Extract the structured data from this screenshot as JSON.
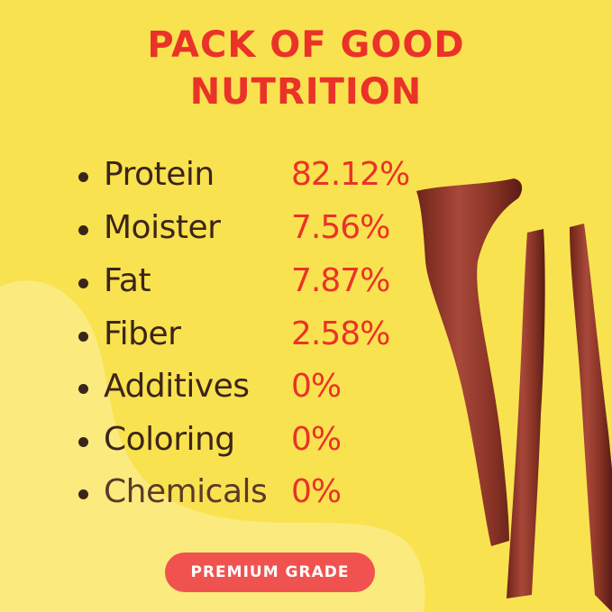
{
  "title": {
    "line1": "PACK OF GOOD",
    "line2": "NUTRITION"
  },
  "colors": {
    "background": "#f9e24f",
    "accent": "#ea3229",
    "text": "#3b2519",
    "badge": "#f0534f"
  },
  "nutrition": [
    {
      "label": "Protein",
      "value": "82.12%"
    },
    {
      "label": "Moister",
      "value": "7.56%"
    },
    {
      "label": "Fat",
      "value": "7.87%"
    },
    {
      "label": "Fiber",
      "value": "2.58%"
    },
    {
      "label": "Additives",
      "value": "0%"
    },
    {
      "label": "Coloring",
      "value": "0%"
    },
    {
      "label": "Chemicals",
      "value": "0%"
    }
  ],
  "badge": {
    "label": "PREMIUM GRADE"
  }
}
